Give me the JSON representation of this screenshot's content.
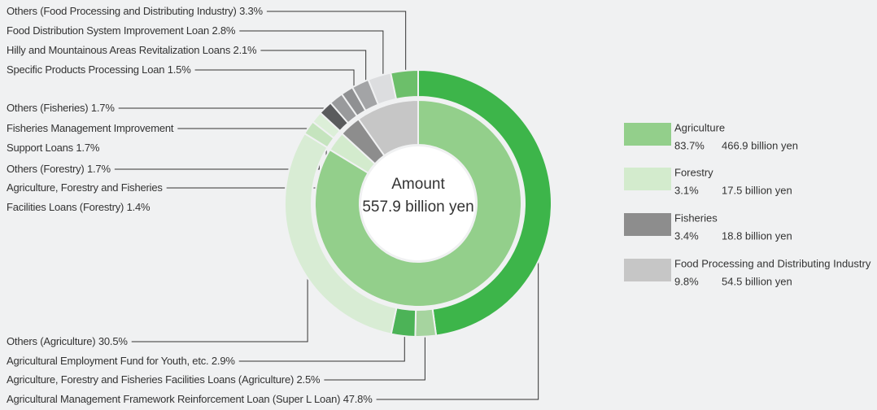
{
  "chart_data": {
    "type": "nested_donut",
    "center_title": "Amount",
    "center_value": "557.9 billion yen",
    "inner": {
      "categories": [
        "Agriculture",
        "Forestry",
        "Fisheries",
        "Food Processing and Distributing Industry"
      ],
      "values": [
        83.7,
        3.1,
        3.4,
        9.8
      ],
      "value_labels": [
        "83.7%",
        "3.1%",
        "3.4%",
        "9.8%"
      ],
      "amounts": [
        "466.9 billion yen",
        "17.5 billion yen",
        "18.8 billion yen",
        "54.5 billion yen"
      ],
      "colors": [
        "#93cf8b",
        "#d3ebcd",
        "#8d8d8d",
        "#c6c6c6"
      ]
    },
    "outer": {
      "categories": [
        "Agricultural Management Framework Reinforcement Loan (Super L Loan)",
        "Agriculture, Forestry and Fisheries Facilities Loans (Agriculture)",
        "Agricultural Employment Fund for Youth, etc.",
        "Others (Agriculture)",
        "Others (Forestry)",
        "Agriculture, Forestry and Fisheries Facilities Loans (Forestry)",
        "Fisheries Management Improvement Support Loans",
        "Others (Fisheries)",
        "Specific Products Processing Loan",
        "Hilly and Mountainous Areas Revitalization Loans",
        "Food Distribution System Improvement Loan",
        "Others (Food Processing and Distributing Industry)"
      ],
      "values": [
        47.8,
        2.5,
        2.9,
        30.5,
        1.7,
        1.4,
        1.7,
        1.7,
        1.5,
        2.1,
        2.8,
        3.3
      ],
      "value_labels": [
        "47.8%",
        "2.5%",
        "2.9%",
        "30.5%",
        "1.7%",
        "1.4%",
        "1.7%",
        "1.7%",
        "1.5%",
        "2.1%",
        "2.8%",
        "3.3%"
      ],
      "colors": [
        "#3db54a",
        "#a6d49f",
        "#4cb357",
        "#d8ecd4",
        "#c5e4be",
        "#dcefd8",
        "#5a5b5d",
        "#999a9c",
        "#8f9092",
        "#a3a4a6",
        "#dcdddf",
        "#6cbf6a"
      ]
    }
  }
}
